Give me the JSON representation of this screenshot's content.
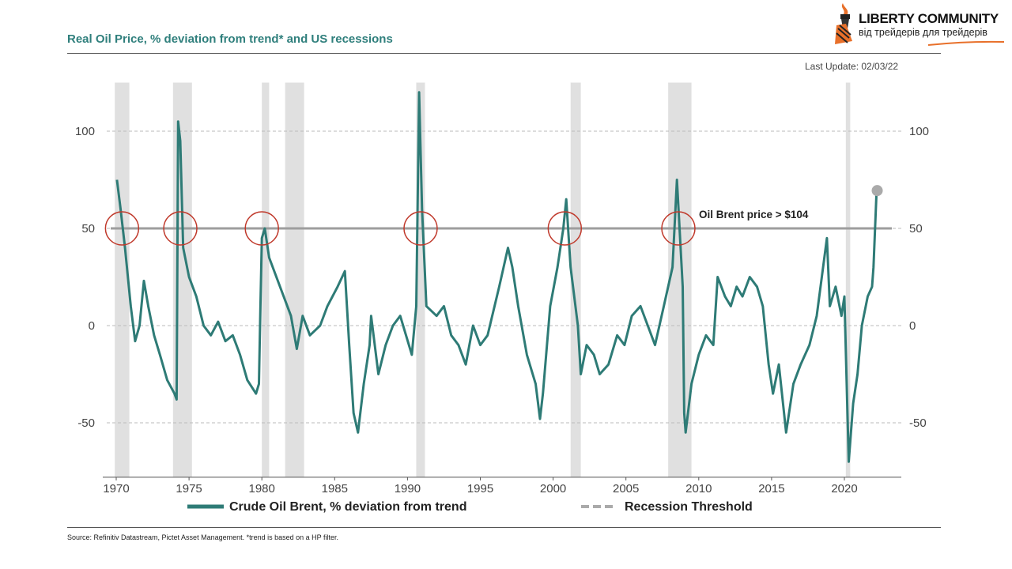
{
  "header": {
    "title": "Real Oil Price, % deviation from trend* and US recessions",
    "last_update": "Last Update: 02/03/22",
    "source": "Source: Refinitiv Datastream, Pictet Asset Management. *trend is based on a HP filter."
  },
  "logo": {
    "line1": "LIBERTY COMMUNITY",
    "line2": "від трейдерів для трейдерів"
  },
  "colors": {
    "series": "#2e7b76",
    "recession": "#e0e0e0",
    "threshold": "#9e9e9e",
    "circle": "#c0392b",
    "title": "#2f7f7c"
  },
  "chart_data": {
    "type": "line",
    "title": "Real Oil Price, % deviation from trend* and US recessions",
    "xlim": [
      1969.3,
      2023.5
    ],
    "ylim": [
      -78,
      125
    ],
    "x_ticks": [
      1970,
      1975,
      1980,
      1985,
      1990,
      1995,
      2000,
      2005,
      2010,
      2015,
      2020
    ],
    "y_ticks": [
      100,
      50,
      0,
      -50
    ],
    "grid": "horizontal dashed",
    "legend": [
      "Crude Oil Brent, % deviation from trend",
      "Recession Threshold"
    ],
    "legend_position": "bottom",
    "threshold": 50,
    "annotation": "Oil Brent price > $104",
    "recessions": [
      [
        1969.9,
        1970.9
      ],
      [
        1973.9,
        1975.2
      ],
      [
        1980.0,
        1980.5
      ],
      [
        1981.6,
        1982.9
      ],
      [
        1990.6,
        1991.2
      ],
      [
        2001.2,
        2001.9
      ],
      [
        2007.9,
        2009.5
      ],
      [
        2020.1,
        2020.4
      ]
    ],
    "threshold_crossings": [
      1970.4,
      1974.4,
      1980.0,
      1990.9,
      2000.8,
      2008.6
    ],
    "series": [
      {
        "name": "Crude Oil Brent, % deviation from trend",
        "points": [
          [
            1970.05,
            75
          ],
          [
            1970.3,
            60
          ],
          [
            1970.6,
            40
          ],
          [
            1971,
            10
          ],
          [
            1971.3,
            -8
          ],
          [
            1971.6,
            0
          ],
          [
            1971.9,
            23
          ],
          [
            1972.2,
            10
          ],
          [
            1972.6,
            -5
          ],
          [
            1973,
            -15
          ],
          [
            1973.5,
            -28
          ],
          [
            1974,
            -35
          ],
          [
            1974.15,
            -38
          ],
          [
            1974.25,
            105
          ],
          [
            1974.4,
            95
          ],
          [
            1974.6,
            40
          ],
          [
            1975,
            25
          ],
          [
            1975.5,
            15
          ],
          [
            1976,
            0
          ],
          [
            1976.5,
            -5
          ],
          [
            1977,
            2
          ],
          [
            1977.5,
            -8
          ],
          [
            1978,
            -5
          ],
          [
            1978.5,
            -15
          ],
          [
            1979,
            -28
          ],
          [
            1979.6,
            -35
          ],
          [
            1979.8,
            -30
          ],
          [
            1979.9,
            10
          ],
          [
            1980.0,
            45
          ],
          [
            1980.2,
            50
          ],
          [
            1980.5,
            35
          ],
          [
            1981,
            25
          ],
          [
            1981.5,
            15
          ],
          [
            1982,
            5
          ],
          [
            1982.4,
            -12
          ],
          [
            1982.8,
            5
          ],
          [
            1983.3,
            -5
          ],
          [
            1984,
            0
          ],
          [
            1984.5,
            10
          ],
          [
            1985.2,
            20
          ],
          [
            1985.7,
            28
          ],
          [
            1986.0,
            -10
          ],
          [
            1986.3,
            -45
          ],
          [
            1986.6,
            -55
          ],
          [
            1987,
            -30
          ],
          [
            1987.4,
            -10
          ],
          [
            1987.5,
            5
          ],
          [
            1988,
            -25
          ],
          [
            1988.5,
            -10
          ],
          [
            1989,
            0
          ],
          [
            1989.5,
            5
          ],
          [
            1990.3,
            -15
          ],
          [
            1990.6,
            10
          ],
          [
            1990.8,
            120
          ],
          [
            1991.0,
            60
          ],
          [
            1991.3,
            10
          ],
          [
            1992,
            5
          ],
          [
            1992.5,
            10
          ],
          [
            1993,
            -5
          ],
          [
            1993.5,
            -10
          ],
          [
            1994,
            -20
          ],
          [
            1994.5,
            0
          ],
          [
            1995,
            -10
          ],
          [
            1995.5,
            -5
          ],
          [
            1996.3,
            20
          ],
          [
            1996.9,
            40
          ],
          [
            1997.2,
            30
          ],
          [
            1997.6,
            10
          ],
          [
            1998.2,
            -15
          ],
          [
            1998.8,
            -30
          ],
          [
            1999.1,
            -48
          ],
          [
            1999.3,
            -35
          ],
          [
            1999.8,
            10
          ],
          [
            2000.3,
            30
          ],
          [
            2000.7,
            50
          ],
          [
            2000.9,
            65
          ],
          [
            2001.2,
            30
          ],
          [
            2001.7,
            0
          ],
          [
            2001.9,
            -25
          ],
          [
            2002.3,
            -10
          ],
          [
            2002.8,
            -15
          ],
          [
            2003.2,
            -25
          ],
          [
            2003.8,
            -20
          ],
          [
            2004.4,
            -5
          ],
          [
            2004.9,
            -10
          ],
          [
            2005.4,
            5
          ],
          [
            2006,
            10
          ],
          [
            2006.5,
            0
          ],
          [
            2007,
            -10
          ],
          [
            2007.6,
            10
          ],
          [
            2008.2,
            30
          ],
          [
            2008.5,
            75
          ],
          [
            2008.9,
            20
          ],
          [
            2009.0,
            -45
          ],
          [
            2009.1,
            -55
          ],
          [
            2009.5,
            -30
          ],
          [
            2010,
            -15
          ],
          [
            2010.5,
            -5
          ],
          [
            2011,
            -10
          ],
          [
            2011.3,
            25
          ],
          [
            2011.8,
            15
          ],
          [
            2012.2,
            10
          ],
          [
            2012.6,
            20
          ],
          [
            2013,
            15
          ],
          [
            2013.5,
            25
          ],
          [
            2014,
            20
          ],
          [
            2014.4,
            10
          ],
          [
            2014.8,
            -20
          ],
          [
            2015.1,
            -35
          ],
          [
            2015.5,
            -20
          ],
          [
            2016.0,
            -55
          ],
          [
            2016.5,
            -30
          ],
          [
            2017.0,
            -20
          ],
          [
            2017.6,
            -10
          ],
          [
            2018.1,
            5
          ],
          [
            2018.8,
            45
          ],
          [
            2019.0,
            10
          ],
          [
            2019.4,
            20
          ],
          [
            2019.8,
            5
          ],
          [
            2020.0,
            15
          ],
          [
            2020.3,
            -70
          ],
          [
            2020.6,
            -40
          ],
          [
            2020.9,
            -25
          ],
          [
            2021.2,
            0
          ],
          [
            2021.6,
            15
          ],
          [
            2021.9,
            20
          ],
          [
            2022.0,
            30
          ],
          [
            2022.2,
            67
          ]
        ]
      }
    ]
  }
}
